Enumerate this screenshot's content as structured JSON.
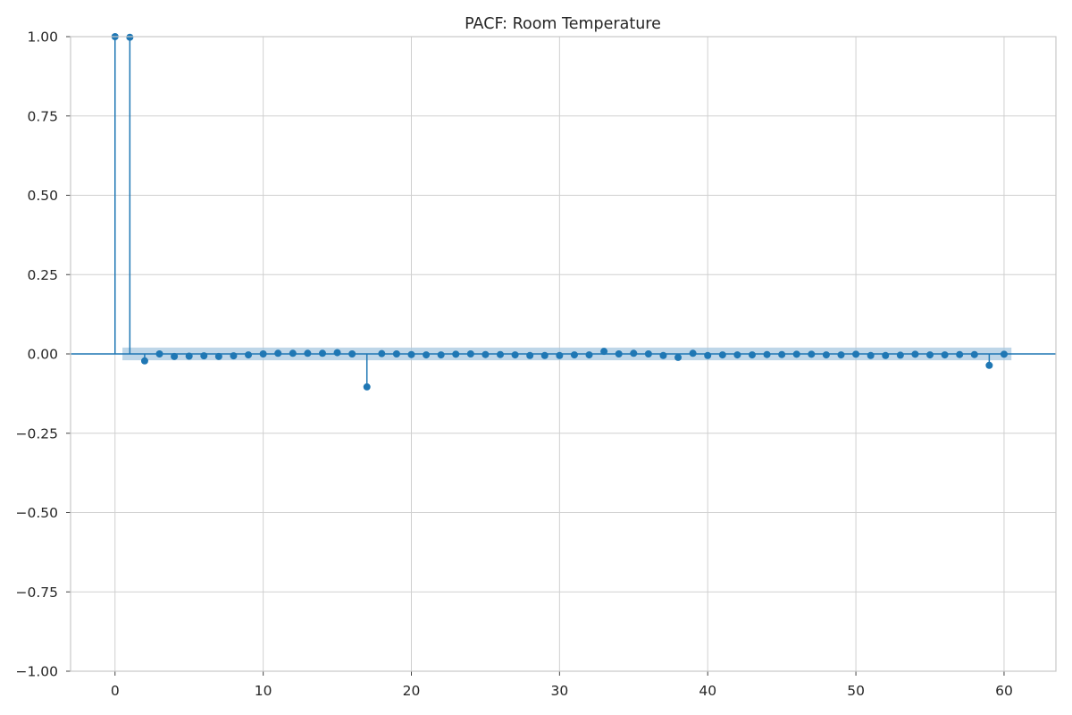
{
  "chart_data": {
    "type": "stem",
    "title": "PACF: Room Temperature",
    "xlabel": "",
    "ylabel": "",
    "xlim": [
      -3,
      63.5
    ],
    "ylim": [
      -1.0,
      1.0
    ],
    "x_ticks": [
      0,
      10,
      20,
      30,
      40,
      50,
      60
    ],
    "y_ticks": [
      1.0,
      0.75,
      0.5,
      0.25,
      0.0,
      -0.25,
      -0.5,
      -0.75,
      -1.0
    ],
    "y_tick_labels": [
      "1.00",
      "0.75",
      "0.50",
      "0.25",
      "0.00",
      "−0.25",
      "−0.50",
      "−0.75",
      "−1.00"
    ],
    "grid": true,
    "color": "#1f77b4",
    "confidence_band_color": "#a8c8e0",
    "confidence_band": {
      "x_start": 0.5,
      "x_end": 60.5,
      "lower": -0.02,
      "upper": 0.02
    },
    "lags": [
      0,
      1,
      2,
      3,
      4,
      5,
      6,
      7,
      8,
      9,
      10,
      11,
      12,
      13,
      14,
      15,
      16,
      17,
      18,
      19,
      20,
      21,
      22,
      23,
      24,
      25,
      26,
      27,
      28,
      29,
      30,
      31,
      32,
      33,
      34,
      35,
      36,
      37,
      38,
      39,
      40,
      41,
      42,
      43,
      44,
      45,
      46,
      47,
      48,
      49,
      50,
      51,
      52,
      53,
      54,
      55,
      56,
      57,
      58,
      59,
      60
    ],
    "values": [
      1.0,
      0.998,
      -0.022,
      0.0,
      -0.008,
      -0.007,
      -0.006,
      -0.008,
      -0.006,
      -0.003,
      0.0,
      0.002,
      0.002,
      0.002,
      0.002,
      0.004,
      0.0,
      -0.104,
      0.001,
      0.0,
      -0.002,
      -0.003,
      -0.003,
      -0.001,
      0.0,
      -0.002,
      -0.002,
      -0.003,
      -0.005,
      -0.005,
      -0.005,
      -0.003,
      -0.003,
      0.008,
      0.0,
      0.002,
      0.0,
      -0.005,
      -0.011,
      0.002,
      -0.005,
      -0.003,
      -0.003,
      -0.003,
      -0.002,
      -0.002,
      -0.001,
      -0.001,
      -0.003,
      -0.003,
      -0.001,
      -0.005,
      -0.005,
      -0.004,
      -0.001,
      -0.003,
      -0.003,
      -0.002,
      -0.002,
      -0.036,
      -0.001
    ]
  }
}
